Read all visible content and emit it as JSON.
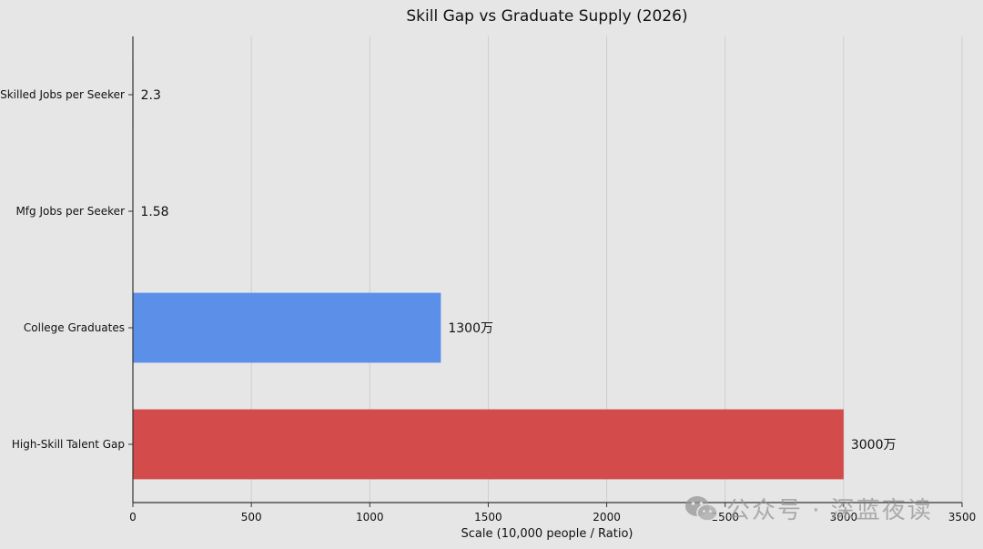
{
  "chart_data": {
    "type": "bar",
    "orientation": "horizontal",
    "title": "Skill Gap vs Graduate Supply (2026)",
    "xlabel": "Scale (10,000 people / Ratio)",
    "ylabel": "",
    "xlim": [
      0,
      3500
    ],
    "xticks": [
      0,
      500,
      1000,
      1500,
      2000,
      2500,
      3000,
      3500
    ],
    "grid": true,
    "categories": [
      "Skilled Jobs per Seeker",
      "Mfg Jobs per Seeker",
      "College Graduates",
      "High-Skill Talent Gap"
    ],
    "values": [
      2.3,
      1.58,
      1300,
      3000
    ],
    "data_labels": [
      "2.3",
      "1.58",
      "1300万",
      "3000万"
    ],
    "colors": [
      "#5b8fe8",
      "#5b8fe8",
      "#5b8fe8",
      "#d34b4b"
    ]
  },
  "watermark": {
    "text": "公众号 · 深蓝夜读",
    "icon": "wechat-icon"
  }
}
